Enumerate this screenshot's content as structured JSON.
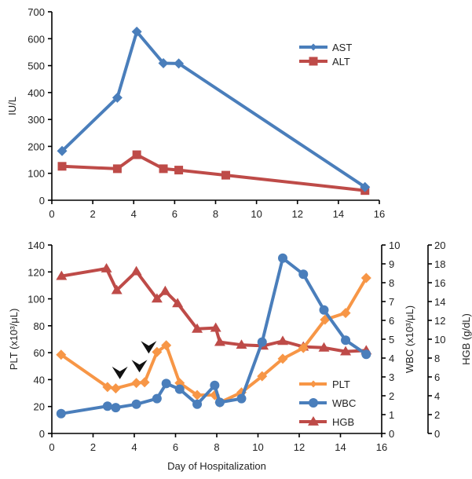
{
  "chart_data": [
    {
      "type": "line",
      "title": "",
      "xlabel": "",
      "ylabel": "IU/L",
      "xlim": [
        0,
        16
      ],
      "ylim": [
        0,
        700
      ],
      "xticks": [
        0,
        2,
        4,
        6,
        8,
        10,
        12,
        14,
        16
      ],
      "yticks": [
        0,
        100,
        200,
        300,
        400,
        500,
        600,
        700
      ],
      "grid": false,
      "legend_position": "top-right",
      "series": [
        {
          "name": "AST",
          "color": "#4a7ebb",
          "marker": "diamond",
          "x": [
            0.5,
            3.2,
            4.15,
            5.45,
            6.2,
            15.3
          ],
          "y": [
            183,
            381,
            626,
            509,
            508,
            49
          ]
        },
        {
          "name": "ALT",
          "color": "#be4b48",
          "marker": "square",
          "x": [
            0.5,
            3.2,
            4.15,
            5.45,
            6.2,
            8.5,
            15.3
          ],
          "y": [
            126,
            117,
            169,
            117,
            112,
            93,
            36
          ]
        }
      ]
    },
    {
      "type": "line",
      "title": "",
      "xlabel": "Day of Hospitalization",
      "xlim": [
        0,
        16
      ],
      "xticks": [
        0,
        2,
        4,
        6,
        8,
        10,
        12,
        14,
        16
      ],
      "grid": false,
      "legend_position": "bottom-right",
      "axes": [
        {
          "id": "left",
          "label": "PLT  (x10³/μL)",
          "ylim": [
            0,
            140
          ],
          "yticks": [
            0,
            20,
            40,
            60,
            80,
            100,
            120,
            140
          ]
        },
        {
          "id": "right1",
          "label": "WBC  (x10³/μL)",
          "ylim": [
            0,
            10
          ],
          "yticks": [
            0,
            1,
            2,
            3,
            4,
            5,
            6,
            7,
            8,
            9,
            10
          ]
        },
        {
          "id": "right2",
          "label": "HGB  (g/dL)",
          "ylim": [
            0,
            20
          ],
          "yticks": [
            0,
            2,
            4,
            6,
            8,
            10,
            12,
            14,
            16,
            18,
            20
          ]
        }
      ],
      "series": [
        {
          "name": "PLT",
          "axis": "left",
          "color": "#f79646",
          "marker": "diamond",
          "x": [
            0.45,
            2.7,
            3.1,
            4.1,
            4.5,
            5.1,
            5.55,
            6.2,
            7.05,
            7.9,
            8.15,
            9.2,
            10.2,
            11.2,
            12.2,
            13.25,
            14.25,
            15.25
          ],
          "y": [
            58.5,
            34.5,
            33.5,
            37.5,
            38,
            60.5,
            65.5,
            37.5,
            28.5,
            28.5,
            23,
            30.5,
            42.5,
            55.5,
            63.5,
            84.5,
            89.5,
            115.5
          ]
        },
        {
          "name": "WBC",
          "axis": "right1",
          "color": "#4a7ebb",
          "marker": "circle",
          "x": [
            0.45,
            2.7,
            3.1,
            4.1,
            5.1,
            5.55,
            6.2,
            7.05,
            7.9,
            8.15,
            9.2,
            10.2,
            11.2,
            12.2,
            13.2,
            14.25,
            15.25
          ],
          "y": [
            1.05,
            1.45,
            1.37,
            1.55,
            1.85,
            2.65,
            2.35,
            1.55,
            2.55,
            1.65,
            1.85,
            4.85,
            9.3,
            8.45,
            6.55,
            4.95,
            4.2
          ]
        },
        {
          "name": "HGB",
          "axis": "right2",
          "color": "#be4b48",
          "marker": "triangle",
          "x": [
            0.47,
            2.65,
            3.15,
            4.1,
            5.1,
            5.5,
            6.1,
            7.05,
            7.95,
            8.15,
            9.2,
            10.25,
            11.2,
            12.2,
            13.2,
            14.25,
            15.25
          ],
          "y": [
            16.7,
            17.5,
            15.2,
            17.2,
            14.3,
            15.1,
            13.8,
            11.1,
            11.2,
            9.7,
            9.4,
            9.3,
            9.8,
            9.2,
            9.1,
            8.7,
            8.8
          ]
        }
      ],
      "annotations": [
        {
          "type": "arrowhead",
          "x": 3.3,
          "y_left_axis": 45
        },
        {
          "type": "arrowhead",
          "x": 4.25,
          "y_left_axis": 50
        },
        {
          "type": "arrowhead",
          "x": 4.7,
          "y_left_axis": 64
        }
      ]
    }
  ]
}
